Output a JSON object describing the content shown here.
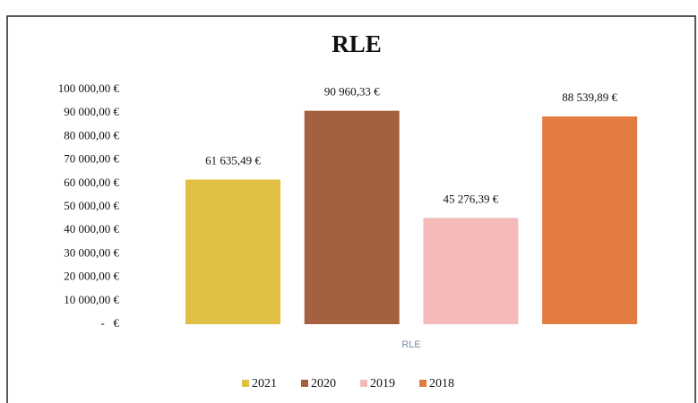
{
  "chart_data": {
    "type": "bar",
    "title": "RLE",
    "categories": [
      "RLE"
    ],
    "series": [
      {
        "name": "2021",
        "color": "#e0bf45",
        "values": [
          61635.49
        ],
        "value_labels": [
          "61 635,49 €"
        ]
      },
      {
        "name": "2020",
        "color": "#a4603f",
        "values": [
          90960.33
        ],
        "value_labels": [
          "90 960,33 €"
        ]
      },
      {
        "name": "2019",
        "color": "#f5baba",
        "values": [
          45276.39
        ],
        "value_labels": [
          "45 276,39 €"
        ]
      },
      {
        "name": "2018",
        "color": "#e47b40",
        "values": [
          88539.89
        ],
        "value_labels": [
          "88 539,89 €"
        ]
      }
    ],
    "ylim": [
      0,
      100000
    ],
    "yticks": [
      {
        "value": 0,
        "label": "-   €"
      },
      {
        "value": 10000,
        "label": "10 000,00 €"
      },
      {
        "value": 20000,
        "label": "20 000,00 €"
      },
      {
        "value": 30000,
        "label": "30 000,00 €"
      },
      {
        "value": 40000,
        "label": "40 000,00 €"
      },
      {
        "value": 50000,
        "label": "50 000,00 €"
      },
      {
        "value": 60000,
        "label": "60 000,00 €"
      },
      {
        "value": 70000,
        "label": "70 000,00 €"
      },
      {
        "value": 80000,
        "label": "80 000,00 €"
      },
      {
        "value": 90000,
        "label": "90 000,00 €"
      },
      {
        "value": 100000,
        "label": "100 000,00 €"
      }
    ],
    "grid": false,
    "legend": "bottom"
  }
}
